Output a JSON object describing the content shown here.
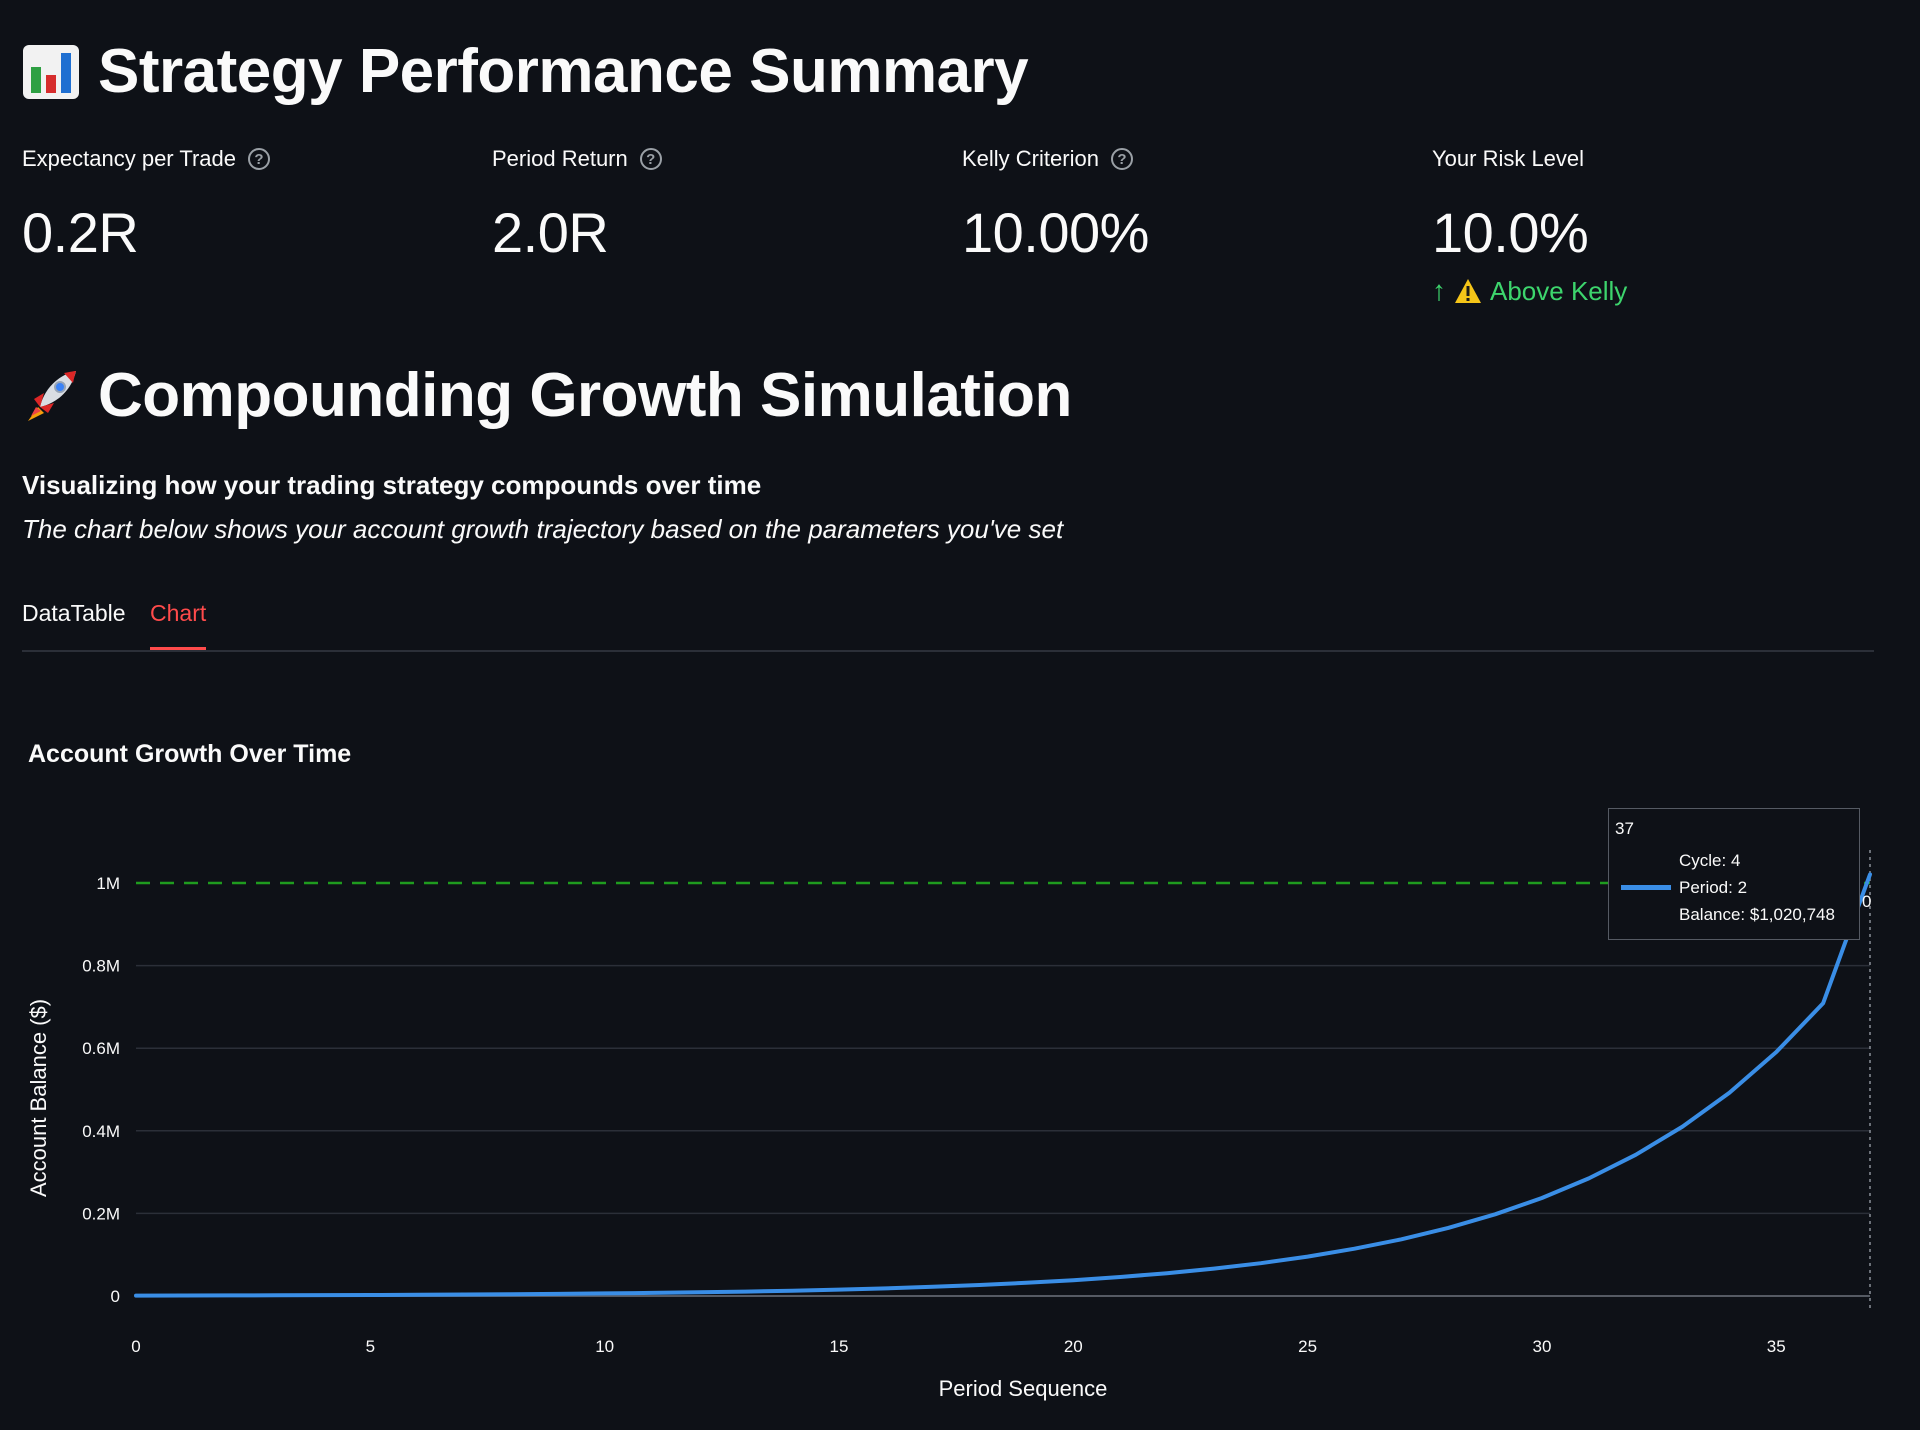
{
  "header": {
    "title": "Strategy Performance Summary",
    "icon": "bar-chart-emoji"
  },
  "metrics": [
    {
      "label": "Expectancy per Trade",
      "value": "0.2R",
      "help": true
    },
    {
      "label": "Period Return",
      "value": "2.0R",
      "help": true
    },
    {
      "label": "Kelly Criterion",
      "value": "10.00%",
      "help": true
    },
    {
      "label": "Your Risk Level",
      "value": "10.0%",
      "help": false,
      "delta": "Above Kelly",
      "delta_color": "#3dd56d"
    }
  ],
  "section": {
    "title": "Compounding Growth Simulation",
    "icon": "rocket-emoji",
    "subtitle": "Visualizing how your trading strategy compounds over time",
    "caption": "The chart below shows your account growth trajectory based on the parameters you've set"
  },
  "tabs": [
    {
      "label": "DataTable",
      "active": false
    },
    {
      "label": "Chart",
      "active": true
    }
  ],
  "chart_data": {
    "type": "line",
    "title": "Account Growth Over Time",
    "xlabel": "Period Sequence",
    "ylabel": "Account Balance ($)",
    "xlim": [
      0,
      37
    ],
    "ylim": [
      0,
      1100000
    ],
    "x_ticks": [
      0,
      5,
      10,
      15,
      20,
      25,
      30,
      35
    ],
    "y_ticks": [
      {
        "value": 0,
        "label": "0"
      },
      {
        "value": 200000,
        "label": "0.2M"
      },
      {
        "value": 400000,
        "label": "0.4M"
      },
      {
        "value": 600000,
        "label": "0.6M"
      },
      {
        "value": 800000,
        "label": "0.8M"
      },
      {
        "value": 1000000,
        "label": "1M"
      }
    ],
    "target_line": {
      "value": 1000000,
      "color": "#1f9c1f",
      "style": "dashed"
    },
    "series_color": "#3a8ee6",
    "x": [
      0,
      1,
      2,
      3,
      4,
      5,
      6,
      7,
      8,
      9,
      10,
      11,
      12,
      13,
      14,
      15,
      16,
      17,
      18,
      19,
      20,
      21,
      22,
      23,
      24,
      25,
      26,
      27,
      28,
      29,
      30,
      31,
      32,
      33,
      34,
      35,
      36,
      37
    ],
    "values": [
      1000,
      1200,
      1440,
      1730,
      2070,
      2490,
      2990,
      3580,
      4300,
      5160,
      6190,
      7430,
      8920,
      10700,
      12840,
      15410,
      18490,
      22190,
      26620,
      31950,
      38340,
      46010,
      55210,
      66250,
      79500,
      95400,
      114480,
      137380,
      164850,
      197820,
      237390,
      284860,
      341840,
      410200,
      492250,
      590690,
      708830,
      1020748
    ],
    "grid": true,
    "tooltip": {
      "header": "37",
      "lines": [
        "Cycle: 4",
        "Period: 2",
        "Balance: $1,020,748"
      ]
    },
    "partial_label": "0"
  }
}
